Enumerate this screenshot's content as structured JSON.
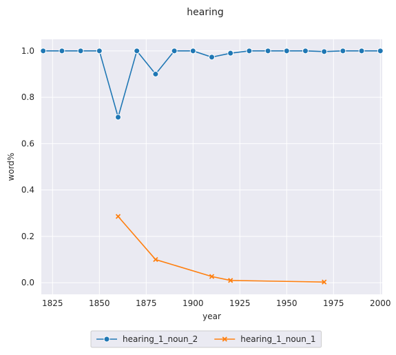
{
  "chart_data": {
    "type": "line",
    "title": "hearing",
    "xlabel": "year",
    "ylabel": "word%",
    "xlim": [
      1819,
      2001
    ],
    "ylim": [
      -0.05,
      1.05
    ],
    "xticks": [
      1825,
      1850,
      1875,
      1900,
      1925,
      1950,
      1975,
      2000
    ],
    "yticks": [
      0.0,
      0.2,
      0.4,
      0.6,
      0.8,
      1.0
    ],
    "grid": true,
    "legend_position": "bottom-center",
    "series": [
      {
        "name": "hearing_1_noun_2",
        "color": "#1f77b4",
        "marker": "circle",
        "x": [
          1820,
          1830,
          1840,
          1850,
          1860,
          1870,
          1880,
          1890,
          1900,
          1910,
          1920,
          1930,
          1940,
          1950,
          1960,
          1970,
          1980,
          1990,
          2000
        ],
        "y": [
          1.0,
          1.0,
          1.0,
          1.0,
          0.714,
          1.0,
          0.9,
          1.0,
          1.0,
          0.973,
          0.99,
          1.0,
          1.0,
          1.0,
          1.0,
          0.997,
          1.0,
          1.0,
          1.0
        ]
      },
      {
        "name": "hearing_1_noun_1",
        "color": "#ff7f0e",
        "marker": "x",
        "x": [
          1860,
          1880,
          1910,
          1920,
          1970
        ],
        "y": [
          0.286,
          0.1,
          0.027,
          0.01,
          0.003
        ]
      }
    ]
  }
}
